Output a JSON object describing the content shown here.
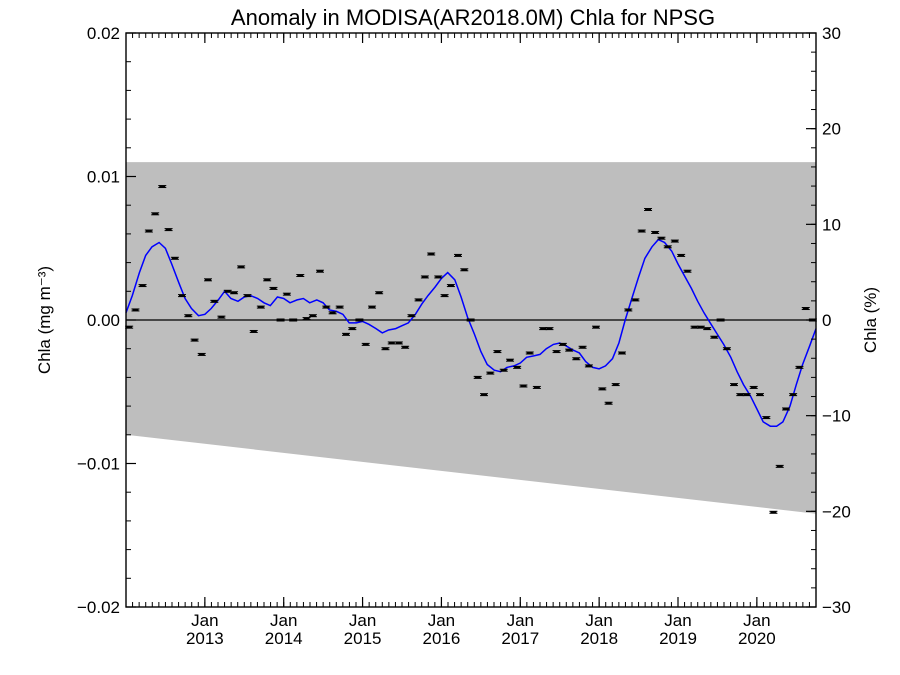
{
  "chart_data": {
    "type": "line",
    "title": "Anomaly in MODISA(AR2018.0M) Chla for NPSG",
    "ylabel_left": "Chla (mg m⁻³)",
    "ylabel_right": "Chla (%)",
    "xlabel": "",
    "ylim_left": [
      -0.02,
      0.02
    ],
    "ylim_right": [
      -30,
      30
    ],
    "xlim": [
      2012.0,
      2020.75
    ],
    "yticks_left": [
      "0.02",
      "0.01",
      "0.00",
      "−0.01",
      "−0.02"
    ],
    "yticks_right": [
      "30",
      "20",
      "10",
      "0",
      "−10",
      "−20",
      "−30"
    ],
    "xticks": [
      {
        "month": "Jan",
        "year": "2013"
      },
      {
        "month": "Jan",
        "year": "2014"
      },
      {
        "month": "Jan",
        "year": "2015"
      },
      {
        "month": "Jan",
        "year": "2016"
      },
      {
        "month": "Jan",
        "year": "2017"
      },
      {
        "month": "Jan",
        "year": "2018"
      },
      {
        "month": "Jan",
        "year": "2019"
      },
      {
        "month": "Jan",
        "year": "2020"
      }
    ],
    "band": {
      "upper": [
        [
          2012.0,
          0.011
        ],
        [
          2020.75,
          0.011
        ]
      ],
      "lower": [
        [
          2012.0,
          -0.008
        ],
        [
          2020.75,
          -0.0135
        ]
      ],
      "color": "#bebebe"
    },
    "monthly_anomaly": {
      "color": "#000000",
      "points": [
        [
          2012.04,
          -0.0005
        ],
        [
          2012.12,
          0.0007
        ],
        [
          2012.21,
          0.0024
        ],
        [
          2012.29,
          0.0062
        ],
        [
          2012.37,
          0.0074
        ],
        [
          2012.46,
          0.0093
        ],
        [
          2012.54,
          0.0063
        ],
        [
          2012.62,
          0.0043
        ],
        [
          2012.71,
          0.0017
        ],
        [
          2012.79,
          0.0003
        ],
        [
          2012.87,
          -0.0014
        ],
        [
          2012.96,
          -0.0024
        ],
        [
          2013.04,
          0.0028
        ],
        [
          2013.12,
          0.0013
        ],
        [
          2013.21,
          0.0002
        ],
        [
          2013.29,
          0.002
        ],
        [
          2013.37,
          0.0019
        ],
        [
          2013.46,
          0.0037
        ],
        [
          2013.54,
          0.0017
        ],
        [
          2013.62,
          -0.0008
        ],
        [
          2013.71,
          0.0009
        ],
        [
          2013.79,
          0.0028
        ],
        [
          2013.87,
          0.0022
        ],
        [
          2013.96,
          0.0
        ],
        [
          2014.04,
          0.0018
        ],
        [
          2014.12,
          0.0
        ],
        [
          2014.21,
          0.0031
        ],
        [
          2014.29,
          0.0001
        ],
        [
          2014.37,
          0.0003
        ],
        [
          2014.46,
          0.0034
        ],
        [
          2014.54,
          0.0009
        ],
        [
          2014.62,
          0.0005
        ],
        [
          2014.71,
          0.0009
        ],
        [
          2014.79,
          -0.001
        ],
        [
          2014.87,
          -0.0006
        ],
        [
          2014.96,
          0.0
        ],
        [
          2015.04,
          -0.0017
        ],
        [
          2015.12,
          0.0009
        ],
        [
          2015.21,
          0.0019
        ],
        [
          2015.29,
          -0.002
        ],
        [
          2015.37,
          -0.0016
        ],
        [
          2015.46,
          -0.0016
        ],
        [
          2015.54,
          -0.0019
        ],
        [
          2015.62,
          0.0003
        ],
        [
          2015.71,
          0.0014
        ],
        [
          2015.79,
          0.003
        ],
        [
          2015.87,
          0.0046
        ],
        [
          2015.96,
          0.003
        ],
        [
          2016.04,
          0.0017
        ],
        [
          2016.12,
          0.0024
        ],
        [
          2016.21,
          0.0045
        ],
        [
          2016.29,
          0.0035
        ],
        [
          2016.37,
          0.0
        ],
        [
          2016.46,
          -0.004
        ],
        [
          2016.54,
          -0.0052
        ],
        [
          2016.62,
          -0.0037
        ],
        [
          2016.71,
          -0.0022
        ],
        [
          2016.79,
          -0.0035
        ],
        [
          2016.87,
          -0.0028
        ],
        [
          2016.96,
          -0.0033
        ],
        [
          2017.04,
          -0.0046
        ],
        [
          2017.12,
          -0.0023
        ],
        [
          2017.21,
          -0.0047
        ],
        [
          2017.29,
          -0.0006
        ],
        [
          2017.37,
          -0.0006
        ],
        [
          2017.46,
          -0.0022
        ],
        [
          2017.54,
          -0.0017
        ],
        [
          2017.62,
          -0.0021
        ],
        [
          2017.71,
          -0.0027
        ],
        [
          2017.79,
          -0.0019
        ],
        [
          2017.87,
          -0.0032
        ],
        [
          2017.96,
          -0.0005
        ],
        [
          2018.04,
          -0.0048
        ],
        [
          2018.12,
          -0.0058
        ],
        [
          2018.21,
          -0.0045
        ],
        [
          2018.29,
          -0.0023
        ],
        [
          2018.37,
          0.0007
        ],
        [
          2018.46,
          0.0014
        ],
        [
          2018.54,
          0.0062
        ],
        [
          2018.62,
          0.0077
        ],
        [
          2018.71,
          0.0061
        ],
        [
          2018.79,
          0.0057
        ],
        [
          2018.87,
          0.0051
        ],
        [
          2018.96,
          0.0055
        ],
        [
          2019.04,
          0.0045
        ],
        [
          2019.12,
          0.0034
        ],
        [
          2019.21,
          -0.0005
        ],
        [
          2019.29,
          -0.0005
        ],
        [
          2019.37,
          -0.0006
        ],
        [
          2019.46,
          -0.0012
        ],
        [
          2019.54,
          0.0
        ],
        [
          2019.62,
          -0.002
        ],
        [
          2019.71,
          -0.0045
        ],
        [
          2019.79,
          -0.0052
        ],
        [
          2019.87,
          -0.0052
        ],
        [
          2019.96,
          -0.0047
        ],
        [
          2020.04,
          -0.0052
        ],
        [
          2020.12,
          -0.0068
        ],
        [
          2020.21,
          -0.0134
        ],
        [
          2020.29,
          -0.0102
        ],
        [
          2020.37,
          -0.0062
        ],
        [
          2020.46,
          -0.0052
        ],
        [
          2020.54,
          -0.0033
        ],
        [
          2020.62,
          0.0008
        ],
        [
          2020.71,
          0.0
        ]
      ]
    },
    "smoothed_anomaly": {
      "color": "#0000ff",
      "points": [
        [
          2012.0,
          0.0005
        ],
        [
          2012.08,
          0.0017
        ],
        [
          2012.17,
          0.0033
        ],
        [
          2012.25,
          0.0045
        ],
        [
          2012.33,
          0.0051
        ],
        [
          2012.42,
          0.0054
        ],
        [
          2012.5,
          0.005
        ],
        [
          2012.58,
          0.0039
        ],
        [
          2012.67,
          0.0026
        ],
        [
          2012.75,
          0.0015
        ],
        [
          2012.83,
          0.0008
        ],
        [
          2012.92,
          0.0003
        ],
        [
          2013.0,
          0.0004
        ],
        [
          2013.08,
          0.0008
        ],
        [
          2013.17,
          0.0014
        ],
        [
          2013.25,
          0.002
        ],
        [
          2013.33,
          0.0015
        ],
        [
          2013.42,
          0.0013
        ],
        [
          2013.5,
          0.0016
        ],
        [
          2013.58,
          0.0017
        ],
        [
          2013.67,
          0.0015
        ],
        [
          2013.75,
          0.0012
        ],
        [
          2013.83,
          0.001
        ],
        [
          2013.92,
          0.0016
        ],
        [
          2014.0,
          0.0015
        ],
        [
          2014.08,
          0.0012
        ],
        [
          2014.17,
          0.0014
        ],
        [
          2014.25,
          0.0015
        ],
        [
          2014.33,
          0.0012
        ],
        [
          2014.42,
          0.0014
        ],
        [
          2014.5,
          0.0012
        ],
        [
          2014.58,
          0.0007
        ],
        [
          2014.67,
          0.0006
        ],
        [
          2014.75,
          0.0004
        ],
        [
          2014.83,
          -0.0002
        ],
        [
          2014.92,
          -0.0002
        ],
        [
          2015.0,
          -0.0001
        ],
        [
          2015.08,
          -0.0003
        ],
        [
          2015.17,
          -0.0006
        ],
        [
          2015.25,
          -0.0009
        ],
        [
          2015.33,
          -0.0007
        ],
        [
          2015.42,
          -0.0006
        ],
        [
          2015.5,
          -0.0004
        ],
        [
          2015.58,
          -0.0002
        ],
        [
          2015.67,
          0.0004
        ],
        [
          2015.75,
          0.0011
        ],
        [
          2015.83,
          0.0017
        ],
        [
          2015.92,
          0.0023
        ],
        [
          2016.0,
          0.0029
        ],
        [
          2016.08,
          0.0033
        ],
        [
          2016.17,
          0.0028
        ],
        [
          2016.25,
          0.0016
        ],
        [
          2016.33,
          0.0002
        ],
        [
          2016.42,
          -0.001
        ],
        [
          2016.5,
          -0.0022
        ],
        [
          2016.58,
          -0.0031
        ],
        [
          2016.67,
          -0.0035
        ],
        [
          2016.75,
          -0.0036
        ],
        [
          2016.83,
          -0.0033
        ],
        [
          2016.92,
          -0.0032
        ],
        [
          2017.0,
          -0.003
        ],
        [
          2017.08,
          -0.0026
        ],
        [
          2017.17,
          -0.0025
        ],
        [
          2017.25,
          -0.0024
        ],
        [
          2017.33,
          -0.002
        ],
        [
          2017.42,
          -0.0017
        ],
        [
          2017.5,
          -0.0016
        ],
        [
          2017.58,
          -0.0018
        ],
        [
          2017.67,
          -0.0021
        ],
        [
          2017.75,
          -0.0023
        ],
        [
          2017.83,
          -0.0029
        ],
        [
          2017.92,
          -0.0033
        ],
        [
          2018.0,
          -0.0034
        ],
        [
          2018.08,
          -0.0032
        ],
        [
          2018.17,
          -0.0027
        ],
        [
          2018.25,
          -0.0016
        ],
        [
          2018.33,
          0.0
        ],
        [
          2018.42,
          0.0016
        ],
        [
          2018.5,
          0.003
        ],
        [
          2018.58,
          0.0043
        ],
        [
          2018.67,
          0.0051
        ],
        [
          2018.75,
          0.0056
        ],
        [
          2018.83,
          0.0054
        ],
        [
          2018.92,
          0.0048
        ],
        [
          2019.0,
          0.0039
        ],
        [
          2019.08,
          0.0031
        ],
        [
          2019.17,
          0.0022
        ],
        [
          2019.25,
          0.0013
        ],
        [
          2019.33,
          0.0005
        ],
        [
          2019.42,
          -0.0003
        ],
        [
          2019.5,
          -0.001
        ],
        [
          2019.58,
          -0.0017
        ],
        [
          2019.67,
          -0.0026
        ],
        [
          2019.75,
          -0.0036
        ],
        [
          2019.83,
          -0.0045
        ],
        [
          2019.92,
          -0.0053
        ],
        [
          2020.0,
          -0.0062
        ],
        [
          2020.08,
          -0.0071
        ],
        [
          2020.17,
          -0.0074
        ],
        [
          2020.25,
          -0.0074
        ],
        [
          2020.33,
          -0.0071
        ],
        [
          2020.42,
          -0.006
        ],
        [
          2020.5,
          -0.0045
        ],
        [
          2020.58,
          -0.0031
        ],
        [
          2020.67,
          -0.0018
        ],
        [
          2020.75,
          -0.0006
        ]
      ]
    }
  }
}
